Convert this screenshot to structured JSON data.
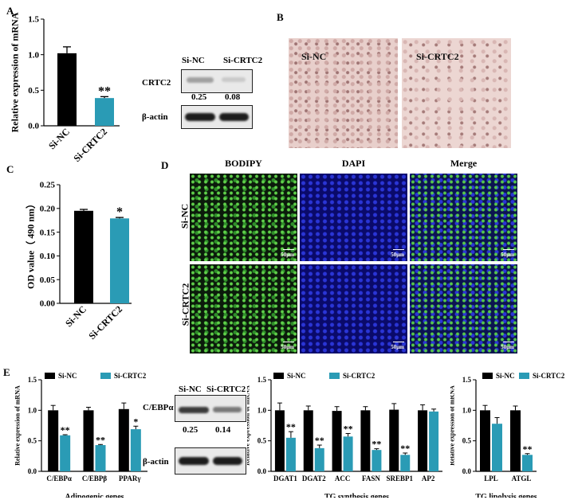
{
  "panels": {
    "a": "A",
    "b": "B",
    "c": "C",
    "d": "D",
    "e": "E"
  },
  "colors": {
    "nc": "#000000",
    "crtc2": "#2a9bb5"
  },
  "blotA": {
    "lanes": [
      "Si-NC",
      "Si-CRTC2"
    ],
    "rows": [
      "CRTC2",
      "β-actin"
    ],
    "values": [
      "0.25",
      "0.08"
    ]
  },
  "blotE": {
    "lanes": [
      "Si-NC",
      "Si-CRTC2"
    ],
    "rows": [
      "C/EBPα",
      "β-actin"
    ],
    "values": [
      "0.25",
      "0.14"
    ]
  },
  "panelB": {
    "labels": [
      "Si-NC",
      "Si-CRTC2"
    ]
  },
  "panelD": {
    "columns": [
      "BODIPY",
      "DAPI",
      "Merge"
    ],
    "rows": [
      "Si-NC",
      "Si-CRTC2"
    ],
    "scale": "50μm"
  },
  "chart_data": [
    {
      "type": "bar",
      "id": "A",
      "categories": [
        "Si-NC",
        "Si-CRTC2"
      ],
      "values": [
        1.02,
        0.39
      ],
      "errors": [
        0.09,
        0.02
      ],
      "sig": [
        "",
        "**"
      ],
      "ylabel": "Relative expression of  mRNA",
      "ylim": [
        0,
        1.5
      ],
      "ticks": [
        "0.0",
        "0.5",
        "1.0",
        "1.5"
      ]
    },
    {
      "type": "bar",
      "id": "C",
      "categories": [
        "Si-NC",
        "Si-CRTC2"
      ],
      "values": [
        0.195,
        0.179
      ],
      "errors": [
        0.003,
        0.002
      ],
      "sig": [
        "",
        "*"
      ],
      "ylabel": "OD value（ 490 nm）",
      "ylim": [
        0,
        0.25
      ],
      "ticks": [
        "0.00",
        "0.05",
        "0.10",
        "0.15",
        "0.20",
        "0.25"
      ]
    },
    {
      "type": "bar",
      "id": "E1",
      "categories": [
        "C/EBPα",
        "C/EBPβ",
        "PPARγ"
      ],
      "series": [
        {
          "name": "Si-NC",
          "values": [
            1.0,
            1.0,
            1.02
          ],
          "errors": [
            0.08,
            0.05,
            0.1
          ]
        },
        {
          "name": "Si-CRTC2",
          "values": [
            0.59,
            0.43,
            0.69
          ],
          "errors": [
            0.01,
            0.01,
            0.05
          ]
        }
      ],
      "sig": [
        "**",
        "**",
        "*"
      ],
      "xlabel": "Adipogenic genes",
      "ylabel": "Relative expression of  mRNA",
      "ylim": [
        0,
        1.5
      ],
      "ticks": [
        "0.0",
        "0.5",
        "1.0",
        "1.5"
      ]
    },
    {
      "type": "bar",
      "id": "E2",
      "categories": [
        "DGAT1",
        "DGAT2",
        "ACC",
        "FASN",
        "SREBP1",
        "AP2"
      ],
      "series": [
        {
          "name": "Si-NC",
          "values": [
            1.0,
            1.0,
            0.99,
            1.0,
            1.01,
            1.0
          ],
          "errors": [
            0.12,
            0.07,
            0.07,
            0.06,
            0.1,
            0.09
          ]
        },
        {
          "name": "Si-CRTC2",
          "values": [
            0.55,
            0.38,
            0.57,
            0.35,
            0.27,
            0.98
          ],
          "errors": [
            0.1,
            0.05,
            0.05,
            0.02,
            0.03,
            0.04
          ]
        }
      ],
      "sig": [
        "**",
        "**",
        "**",
        "**",
        "**",
        ""
      ],
      "xlabel": "TG synthesis genes",
      "ylabel": "Relative expression of  mRNA",
      "ylim": [
        0,
        1.5
      ],
      "ticks": [
        "0.0",
        "0.5",
        "1.0",
        "1.5"
      ]
    },
    {
      "type": "bar",
      "id": "E3",
      "categories": [
        "LPL",
        "ATGL"
      ],
      "series": [
        {
          "name": "Si-NC",
          "values": [
            1.0,
            1.0
          ],
          "errors": [
            0.08,
            0.07
          ]
        },
        {
          "name": "Si-CRTC2",
          "values": [
            0.78,
            0.27
          ],
          "errors": [
            0.1,
            0.02
          ]
        }
      ],
      "sig": [
        "",
        "**"
      ],
      "xlabel": "TG lipolysis genes",
      "ylabel": "Relative expression of  mRNA",
      "ylim": [
        0,
        1.5
      ],
      "ticks": [
        "0.0",
        "0.5",
        "1.0",
        "1.5"
      ]
    }
  ]
}
